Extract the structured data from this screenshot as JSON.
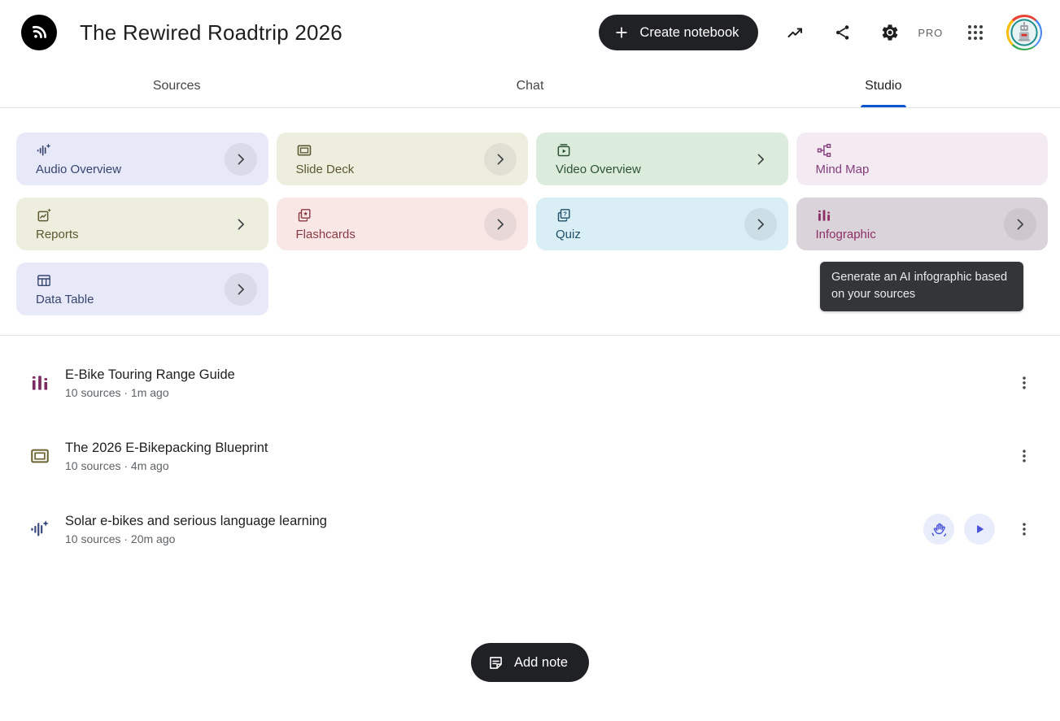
{
  "colors": {
    "accent_blue": "#0b57d0",
    "dark_button": "#202124",
    "tooltip_bg": "#343538",
    "action_circle_bg": "#e9ecfa",
    "action_icon_blue": "#4853db"
  },
  "header": {
    "logo_icon": "notebooklm-logo",
    "title": "The Rewired Roadtrip 2026",
    "create_button_label": "Create notebook",
    "pro_label": "PRO"
  },
  "tabs": [
    {
      "label": "Sources",
      "active": false
    },
    {
      "label": "Chat",
      "active": false
    },
    {
      "label": "Studio",
      "active": true
    }
  ],
  "studio": {
    "cards": [
      {
        "id": "audio-overview",
        "label": "Audio Overview",
        "icon": "audio",
        "bg": "#e7e9f8",
        "fg": "#38456f",
        "chevron": "circle"
      },
      {
        "id": "slide-deck",
        "label": "Slide Deck",
        "icon": "slides",
        "bg": "#eeeedf",
        "fg": "#5c5831",
        "chevron": "circle"
      },
      {
        "id": "video-overview",
        "label": "Video Overview",
        "icon": "video",
        "bg": "#dcecdc",
        "fg": "#2c5236",
        "chevron": "plain"
      },
      {
        "id": "mind-map",
        "label": "Mind Map",
        "icon": "mindmap",
        "bg": "#f4eaf2",
        "fg": "#833f7d",
        "chevron": "none"
      },
      {
        "id": "reports",
        "label": "Reports",
        "icon": "reports",
        "bg": "#eeeedf",
        "fg": "#5c5831",
        "chevron": "plain"
      },
      {
        "id": "flashcards",
        "label": "Flashcards",
        "icon": "flashcards",
        "bg": "#f8e7e5",
        "fg": "#8b3a44",
        "chevron": "circle"
      },
      {
        "id": "quiz",
        "label": "Quiz",
        "icon": "quiz",
        "bg": "#d9eef5",
        "fg": "#1f4e67",
        "chevron": "circle"
      },
      {
        "id": "infographic",
        "label": "Infographic",
        "icon": "infographic",
        "bg": "#dad3d9",
        "fg": "#8e2f68",
        "chevron": "circle",
        "hovered": true
      },
      {
        "id": "data-table",
        "label": "Data Table",
        "icon": "datatable",
        "bg": "#e7e9f8",
        "fg": "#38456f",
        "chevron": "circle"
      }
    ],
    "tooltip": {
      "text": "Generate an AI infographic based on your sources"
    }
  },
  "notes": {
    "items": [
      {
        "icon": "infographic",
        "icon_color": "#7c2a62",
        "title": "E-Bike Touring Range Guide",
        "meta": "10 sources · 1m ago",
        "extra_actions": []
      },
      {
        "icon": "slides",
        "icon_color": "#6b6430",
        "title": "The 2026 E-Bikepacking Blueprint",
        "meta": "10 sources · 4m ago",
        "extra_actions": []
      },
      {
        "icon": "audio",
        "icon_color": "#36487c",
        "title": "Solar e-bikes and serious language learning",
        "meta": "10 sources · 20m ago",
        "extra_actions": [
          "interactive",
          "play"
        ]
      }
    ]
  },
  "footer": {
    "add_note_label": "Add note"
  }
}
